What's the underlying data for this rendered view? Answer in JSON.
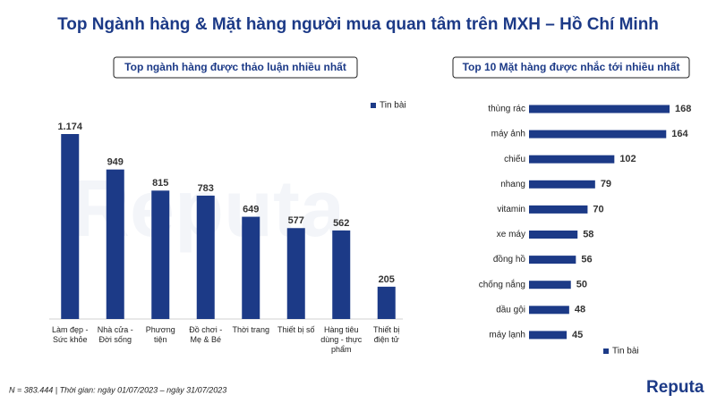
{
  "title": "Top Ngành hàng & Mặt hàng người mua quan tâm trên MXH – Hồ Chí Minh",
  "footnote": "N = 383.444 | Thời gian: ngày 01/07/2023 – ngày 31/07/2023",
  "logo": "Reputa",
  "watermark": "Reputa",
  "chart_data": [
    {
      "type": "bar",
      "orientation": "vertical",
      "title": "Top ngành hàng được thảo luận nhiều nhất",
      "legend": "top-right",
      "categories": [
        "Làm đẹp - Sức khỏe",
        "Nhà cửa - Đời sống",
        "Phương tiện",
        "Đồ chơi - Mẹ & Bé",
        "Thời trang",
        "Thiết bị số",
        "Hàng tiêu dùng - thực phẩm",
        "Thiết bị điện tử"
      ],
      "series": [
        {
          "name": "Tin bài",
          "color": "#1c3a87",
          "values": [
            1174,
            949,
            815,
            783,
            649,
            577,
            562,
            205
          ],
          "value_labels": [
            "1.174",
            "949",
            "815",
            "783",
            "649",
            "577",
            "562",
            "205"
          ]
        }
      ]
    },
    {
      "type": "bar",
      "orientation": "horizontal",
      "title": "Top 10 Mặt hàng được nhắc tới nhiều nhất",
      "legend": "bottom",
      "categories": [
        "thùng rác",
        "máy ảnh",
        "chiếu",
        "nhang",
        "vitamin",
        "xe máy",
        "đồng hồ",
        "chống nắng",
        "dầu gội",
        "máy lạnh"
      ],
      "series": [
        {
          "name": "Tin bài",
          "color": "#1c3a87",
          "values": [
            168,
            164,
            102,
            79,
            70,
            58,
            56,
            50,
            48,
            45
          ]
        }
      ]
    }
  ]
}
